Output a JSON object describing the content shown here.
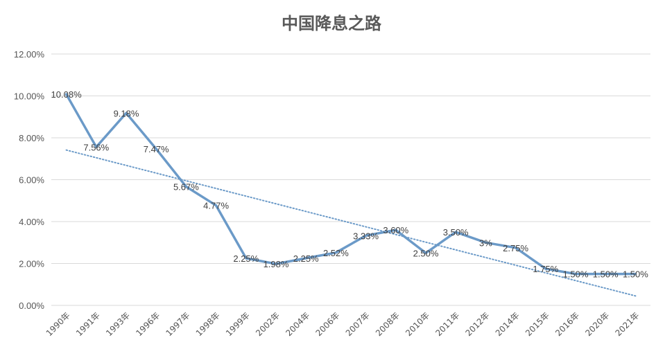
{
  "chart_data": {
    "type": "line",
    "title": "中国降息之路",
    "xlabel": "",
    "ylabel": "",
    "categories": [
      "1990年",
      "1991年",
      "1993年",
      "1996年",
      "1997年",
      "1998年",
      "1999年",
      "2002年",
      "2004年",
      "2006年",
      "2007年",
      "2008年",
      "2010年",
      "2011年",
      "2012年",
      "2014年",
      "2015年",
      "2016年",
      "2020年",
      "2021年"
    ],
    "series": [
      {
        "values": [
          10.08,
          7.56,
          9.18,
          7.47,
          5.67,
          4.77,
          2.25,
          1.98,
          2.25,
          2.52,
          3.33,
          3.6,
          2.5,
          3.5,
          3.0,
          2.75,
          1.75,
          1.5,
          1.5,
          1.5
        ],
        "data_labels": [
          "10.08%",
          "7.56%",
          "9.18%",
          "7.47%",
          "5.67%",
          "4.77%",
          "2.25%",
          "1.98%",
          "2.25%",
          "2.52%",
          "3.33%",
          "3.60%",
          "2.50%",
          "3.50%",
          "3%",
          "2.75%",
          "1.75%",
          "1.50%",
          "1.50%",
          "1.50%"
        ],
        "color": "#6b9ac8",
        "trendline": {
          "type": "linear",
          "style": "dotted",
          "color": "#6b9ac8"
        }
      }
    ],
    "ylim": [
      0,
      12
    ],
    "yticks": [
      0,
      2,
      4,
      6,
      8,
      10,
      12
    ],
    "ytick_labels": [
      "0.00%",
      "2.00%",
      "4.00%",
      "6.00%",
      "8.00%",
      "10.00%",
      "12.00%"
    ],
    "grid": true,
    "legend": "none",
    "title_color": "#595959",
    "gridline_color": "#d9d9d9"
  }
}
